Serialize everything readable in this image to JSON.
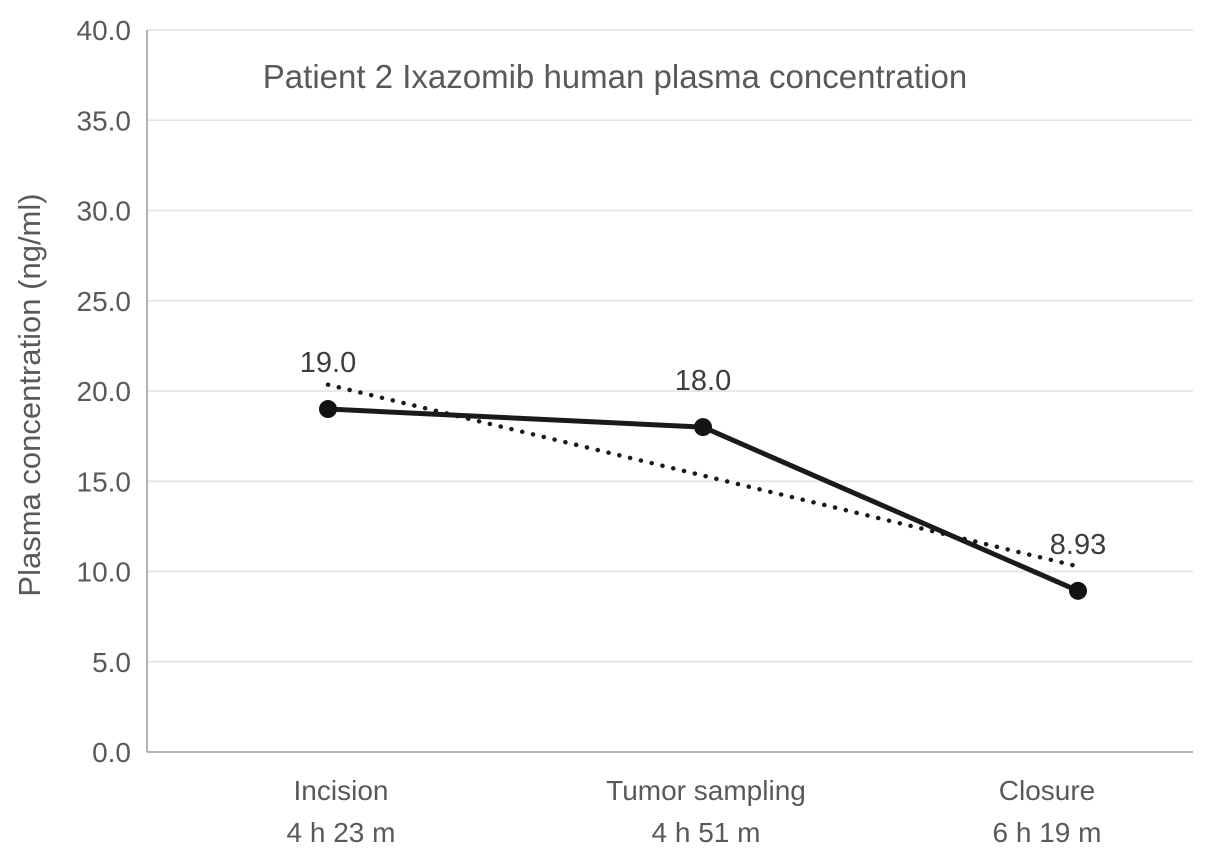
{
  "chart_data": {
    "type": "line",
    "title": "Patient 2 Ixazomib human plasma concentration",
    "xlabel": "",
    "ylabel": "Plasma concentration (ng/ml)",
    "categories": [
      {
        "event": "Incision",
        "time": "4 h 23 m"
      },
      {
        "event": "Tumor sampling",
        "time": "4 h 51 m"
      },
      {
        "event": "Closure",
        "time": "6 h 19 m"
      }
    ],
    "series": [
      {
        "name": "plasma concentration",
        "marker": "filled-circle",
        "line_style": "solid",
        "values": [
          19.0,
          18.0,
          8.93
        ]
      }
    ],
    "data_labels": [
      "19.0",
      "18.0",
      "8.93"
    ],
    "trendline": {
      "type": "linear",
      "line_style": "dotted",
      "endpoints": [
        20.35,
        10.28
      ]
    },
    "ylim": [
      0,
      40
    ],
    "ytick_step": 5,
    "ytick_labels": [
      "0.0",
      "5.0",
      "10.0",
      "15.0",
      "20.0",
      "25.0",
      "30.0",
      "35.0",
      "40.0"
    ],
    "grid": "horizontal",
    "legend": "none",
    "colors": {
      "series": "#1a1a1a",
      "trendline": "#1a1a1a",
      "text": "#595959",
      "data_label_text": "#3d3d3d",
      "gridline": "#e4e4e4",
      "axis_line": "#b3b3b3",
      "background": "#ffffff"
    }
  }
}
